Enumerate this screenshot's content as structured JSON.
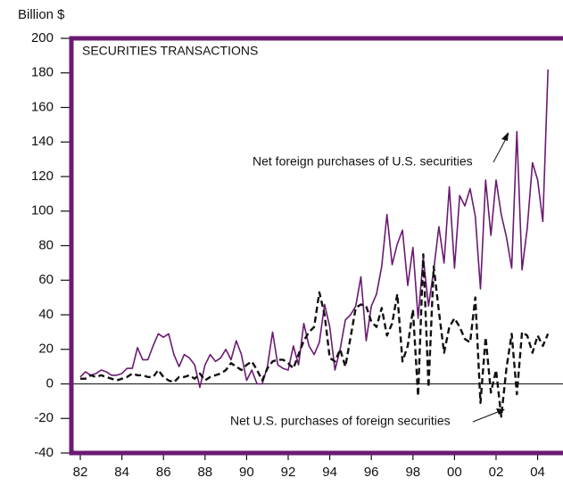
{
  "chart_data": {
    "type": "line",
    "title": "SECURITIES TRANSACTIONS",
    "ylabel": "Billion $",
    "annotations": [
      "Net foreign purchases of U.S. securities",
      "Net U.S.  purchases of foreign securities"
    ],
    "x": [
      1982,
      1982.25,
      1982.5,
      1982.75,
      1983,
      1983.25,
      1983.5,
      1983.75,
      1984,
      1984.25,
      1984.5,
      1984.75,
      1985,
      1985.25,
      1985.5,
      1985.75,
      1986,
      1986.25,
      1986.5,
      1986.75,
      1987,
      1987.25,
      1987.5,
      1987.75,
      1988,
      1988.25,
      1988.5,
      1988.75,
      1989,
      1989.25,
      1989.5,
      1989.75,
      1990,
      1990.25,
      1990.5,
      1990.75,
      1991,
      1991.25,
      1991.5,
      1991.75,
      1992,
      1992.25,
      1992.5,
      1992.75,
      1993,
      1993.25,
      1993.5,
      1993.75,
      1994,
      1994.25,
      1994.5,
      1994.75,
      1995,
      1995.25,
      1995.5,
      1995.75,
      1996,
      1996.25,
      1996.5,
      1996.75,
      1997,
      1997.25,
      1997.5,
      1997.75,
      1998,
      1998.25,
      1998.5,
      1998.75,
      1999,
      1999.25,
      1999.5,
      1999.75,
      2000,
      2000.25,
      2000.5,
      2000.75,
      2001,
      2001.25,
      2001.5,
      2001.75,
      2002,
      2002.25,
      2002.5,
      2002.75,
      2003,
      2003.25,
      2003.5,
      2003.75,
      2004,
      2004.25,
      2004.5
    ],
    "series": [
      {
        "name": "Net foreign purchases of U.S. securities",
        "color": "#6b1a72",
        "dash": false,
        "values": [
          4,
          7,
          5,
          6,
          8,
          7,
          5,
          5,
          6,
          9,
          9,
          21,
          14,
          14,
          22,
          29,
          27,
          29,
          17,
          10,
          17,
          15,
          11,
          -2,
          11,
          17,
          13,
          15,
          20,
          14,
          25,
          17,
          2,
          8,
          0,
          0,
          10,
          30,
          11,
          9,
          8,
          22,
          11,
          35,
          22,
          17,
          24,
          46,
          33,
          8,
          20,
          37,
          40,
          45,
          62,
          25,
          45,
          52,
          68,
          98,
          69,
          81,
          89,
          57,
          79,
          38,
          73,
          45,
          66,
          91,
          70,
          114,
          67,
          109,
          103,
          113,
          97,
          55,
          118,
          86,
          118,
          98,
          85,
          67,
          146,
          66,
          90,
          128,
          118,
          94,
          182
        ]
      },
      {
        "name": "Net U.S.  purchases of foreign securities",
        "color": "#111111",
        "dash": true,
        "values": [
          3,
          3,
          5,
          4,
          5,
          4,
          3,
          2,
          3,
          4,
          6,
          5,
          5,
          4,
          4,
          8,
          4,
          2,
          1,
          4,
          4,
          5,
          3,
          6,
          2,
          4,
          5,
          6,
          8,
          12,
          10,
          8,
          11,
          13,
          8,
          2,
          9,
          13,
          14,
          14,
          12,
          9,
          17,
          25,
          30,
          33,
          53,
          40,
          15,
          13,
          20,
          10,
          27,
          44,
          46,
          45,
          36,
          33,
          44,
          28,
          35,
          52,
          13,
          22,
          43,
          -7,
          75,
          -2,
          68,
          42,
          18,
          33,
          38,
          33,
          26,
          24,
          50,
          -11,
          27,
          -5,
          8,
          -19,
          9,
          29,
          -6,
          30,
          28,
          18,
          28,
          22,
          29
        ]
      }
    ],
    "xlim": [
      1981.57,
      2005.22
    ],
    "xticks": [
      {
        "value": 1982,
        "label": "82"
      },
      {
        "value": 1984,
        "label": "84"
      },
      {
        "value": 1986,
        "label": "86"
      },
      {
        "value": 1988,
        "label": "88"
      },
      {
        "value": 1990,
        "label": "90"
      },
      {
        "value": 1992,
        "label": "92"
      },
      {
        "value": 1994,
        "label": "94"
      },
      {
        "value": 1996,
        "label": "96"
      },
      {
        "value": 1998,
        "label": "98"
      },
      {
        "value": 2000,
        "label": "00"
      },
      {
        "value": 2002,
        "label": "02"
      },
      {
        "value": 2004,
        "label": "04"
      }
    ],
    "ylim": [
      -40,
      200
    ],
    "yticks": [
      -40,
      -20,
      0,
      20,
      40,
      60,
      80,
      100,
      120,
      140,
      160,
      180,
      200
    ],
    "frame_color": "#6b1a72"
  }
}
